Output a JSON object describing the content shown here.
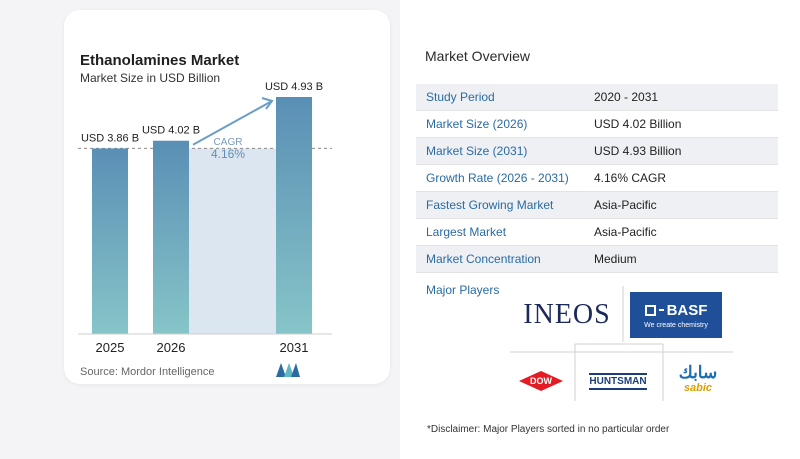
{
  "chart": {
    "title": "Ethanolamines Market",
    "subtitle": "Market Size in USD Billion",
    "source": "Source:",
    "source_name": "Mordor Intelligence",
    "cagr_label": "CAGR",
    "cagr_value": "4.16%",
    "bar_color_top": "#5a8fb5",
    "bar_color_bottom": "#86c5c8",
    "band_color": "#dce6f0"
  },
  "chart_data": {
    "type": "bar",
    "categories": [
      "2025",
      "2026",
      "2031"
    ],
    "values": [
      3.86,
      4.02,
      4.93
    ],
    "data_labels": [
      "USD 3.86 B",
      "USD 4.02 B",
      "USD 4.93 B"
    ],
    "title": "Ethanolamines Market",
    "subtitle": "Market Size in USD Billion",
    "ylim": [
      0,
      5.2
    ],
    "annotation": {
      "text": "CAGR",
      "value": "4.16%"
    },
    "grid": false
  },
  "overview": {
    "title": "Market Overview",
    "rows": [
      {
        "label": "Study Period",
        "value": "2020 - 2031"
      },
      {
        "label": "Market Size (2026)",
        "value": "USD 4.02 Billion"
      },
      {
        "label": "Market Size (2031)",
        "value": "USD 4.93 Billion"
      },
      {
        "label": "Growth Rate (2026 - 2031)",
        "value": "4.16% CAGR"
      },
      {
        "label": "Fastest Growing Market",
        "value": "Asia-Pacific"
      },
      {
        "label": "Largest Market",
        "value": "Asia-Pacific"
      },
      {
        "label": "Market Concentration",
        "value": "Medium"
      }
    ],
    "major_players_label": "Major Players",
    "players": {
      "ineos": "INEOS",
      "basf": "BASF",
      "basf_tagline": "We create chemistry",
      "dow": "DOW",
      "huntsman": "HUNTSMAN",
      "sabic_ar": "سابك",
      "sabic": "sabic"
    },
    "disclaimer": "*Disclaimer: Major Players sorted in no particular order"
  }
}
